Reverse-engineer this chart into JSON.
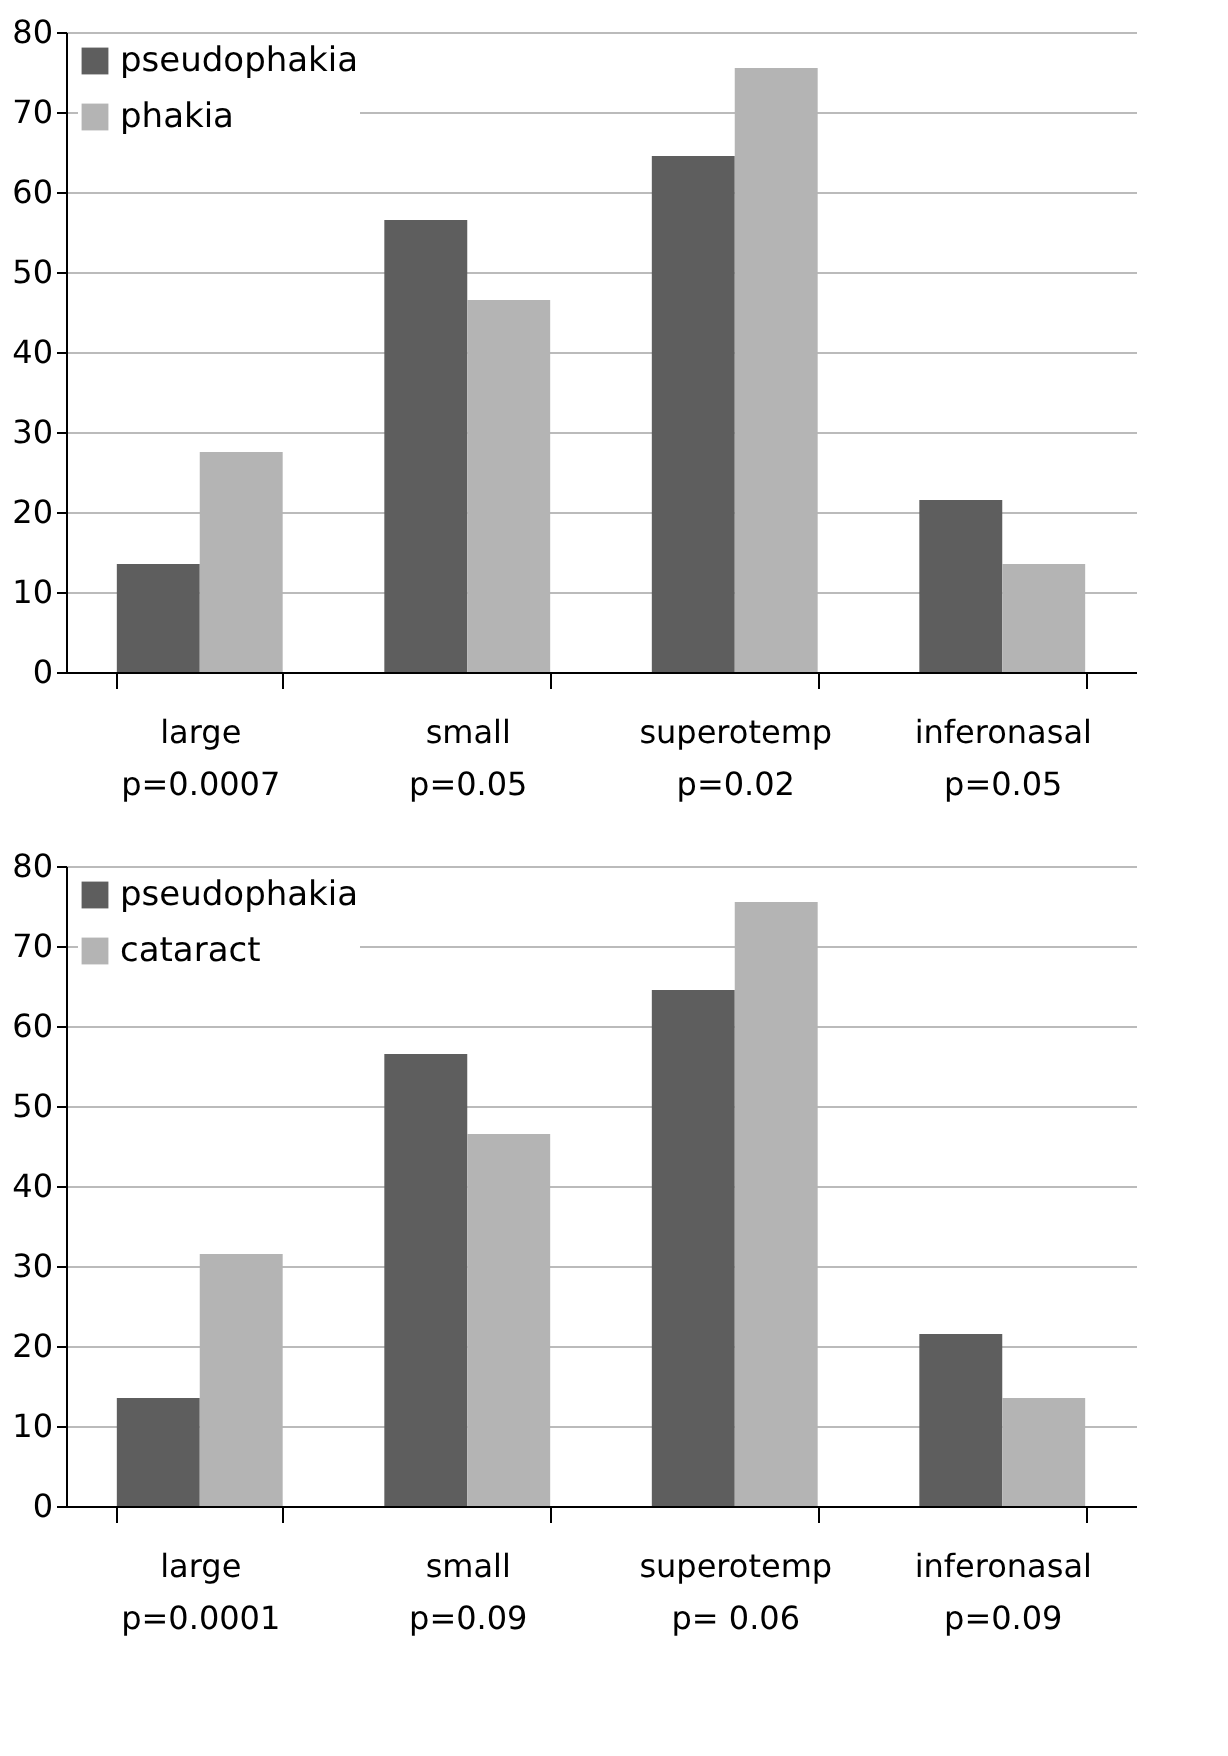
{
  "chart_data": [
    {
      "type": "bar",
      "categories": [
        "large\np=0.0007",
        "small\np=0.05",
        "superotemp\np=0.02",
        "inferonasal\np=0.05"
      ],
      "series": [
        {
          "name": "pseudophakia",
          "color": "#5e5e5e",
          "values": [
            13.5,
            56.5,
            64.5,
            21.5
          ]
        },
        {
          "name": "phakia",
          "color": "#b4b4b4",
          "values": [
            27.5,
            46.5,
            75.5,
            13.5
          ]
        }
      ],
      "ylim": [
        0,
        80
      ],
      "yticks": [
        0,
        10,
        20,
        30,
        40,
        50,
        60,
        70,
        80
      ],
      "grid": "y",
      "legend": "top left"
    },
    {
      "type": "bar",
      "categories": [
        "large\np=0.0001",
        "small\np=0.09",
        "superotemp\np= 0.06",
        "inferonasal\np=0.09"
      ],
      "series": [
        {
          "name": "pseudophakia",
          "color": "#5e5e5e",
          "values": [
            13.5,
            56.5,
            64.5,
            21.5
          ]
        },
        {
          "name": "cataract",
          "color": "#b4b4b4",
          "values": [
            31.5,
            46.5,
            75.5,
            13.5
          ]
        }
      ],
      "ylim": [
        0,
        80
      ],
      "yticks": [
        0,
        10,
        20,
        30,
        40,
        50,
        60,
        70,
        80
      ],
      "grid": "y",
      "legend": "top left"
    }
  ]
}
